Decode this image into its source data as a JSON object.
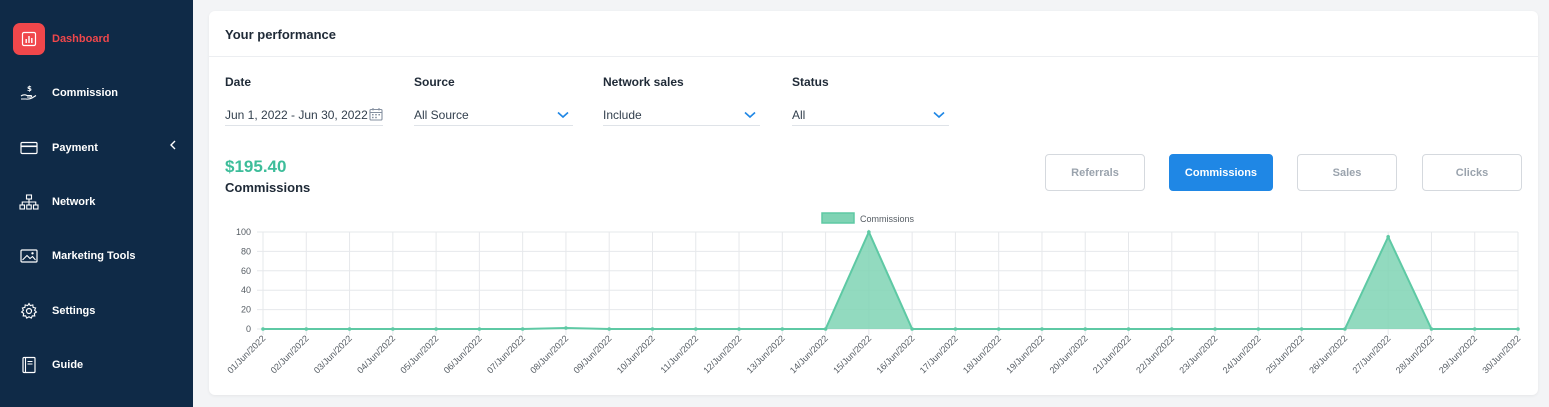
{
  "sidebar": {
    "items": [
      {
        "label": "Dashboard",
        "icon": "bar-chart-icon",
        "active": true
      },
      {
        "label": "Commission",
        "icon": "hand-dollar-icon"
      },
      {
        "label": "Payment",
        "icon": "credit-card-icon",
        "has_submenu": true
      },
      {
        "label": "Network",
        "icon": "sitemap-icon"
      },
      {
        "label": "Marketing Tools",
        "icon": "image-icon"
      },
      {
        "label": "Settings",
        "icon": "gear-icon"
      },
      {
        "label": "Guide",
        "icon": "book-icon"
      }
    ]
  },
  "performance": {
    "title": "Your performance",
    "filters": {
      "date": {
        "label": "Date",
        "value": "Jun 1, 2022 - Jun 30, 2022"
      },
      "source": {
        "label": "Source",
        "value": "All Source"
      },
      "network_sales": {
        "label": "Network sales",
        "value": "Include"
      },
      "status": {
        "label": "Status",
        "value": "All"
      }
    },
    "summary": {
      "amount": "$195.40",
      "label": "Commissions"
    },
    "tabs": [
      {
        "label": "Referrals",
        "active": false
      },
      {
        "label": "Commissions",
        "active": true
      },
      {
        "label": "Sales",
        "active": false
      },
      {
        "label": "Clicks",
        "active": false
      }
    ]
  },
  "colors": {
    "sidebar_bg": "#0f2a47",
    "active_accent": "#f0474b",
    "primary_button": "#1f87e5",
    "series_line": "#5ec9a4",
    "series_fill": "#7fd3b4"
  },
  "chart_data": {
    "type": "area",
    "legend": [
      "Commissions"
    ],
    "legend_position": "top-center",
    "grid": true,
    "ylim": [
      0,
      100
    ],
    "yticks": [
      0,
      20,
      40,
      60,
      80,
      100
    ],
    "x": [
      "01/Jun/2022",
      "02/Jun/2022",
      "03/Jun/2022",
      "04/Jun/2022",
      "05/Jun/2022",
      "06/Jun/2022",
      "07/Jun/2022",
      "08/Jun/2022",
      "09/Jun/2022",
      "10/Jun/2022",
      "11/Jun/2022",
      "12/Jun/2022",
      "13/Jun/2022",
      "14/Jun/2022",
      "15/Jun/2022",
      "16/Jun/2022",
      "17/Jun/2022",
      "18/Jun/2022",
      "19/Jun/2022",
      "20/Jun/2022",
      "21/Jun/2022",
      "22/Jun/2022",
      "23/Jun/2022",
      "24/Jun/2022",
      "25/Jun/2022",
      "26/Jun/2022",
      "27/Jun/2022",
      "28/Jun/2022",
      "29/Jun/2022",
      "30/Jun/2022"
    ],
    "series": [
      {
        "name": "Commissions",
        "values": [
          0,
          0,
          0,
          0,
          0,
          0,
          0,
          1,
          0,
          0,
          0,
          0,
          0,
          0,
          100,
          0,
          0,
          0,
          0,
          0,
          0,
          0,
          0,
          0,
          0,
          0,
          95,
          0,
          0,
          0
        ]
      }
    ]
  }
}
